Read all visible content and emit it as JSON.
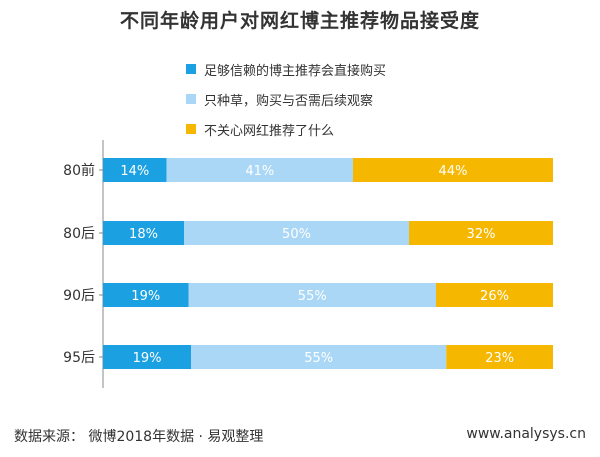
{
  "title": "不同年龄用户对网红博主推荐物品接受度",
  "footer": {
    "source": "数据来源： 微博2018年数据 · 易观整理",
    "url": "www.analysys.cn"
  },
  "chart_data": {
    "type": "bar",
    "orientation": "horizontal",
    "stacked": true,
    "title": "不同年龄用户对网红博主推荐物品接受度",
    "categories": [
      "80前",
      "80后",
      "90后",
      "95后"
    ],
    "series": [
      {
        "name": "足够信赖的博主推荐会直接购买",
        "color": "#1ba1e2",
        "values": [
          14,
          18,
          19,
          19
        ],
        "labels": [
          "14%",
          "18%",
          "19%",
          "19%"
        ]
      },
      {
        "name": "只种草，购买与否需后续观察",
        "color": "#a9d7f5",
        "values": [
          41,
          50,
          55,
          55
        ],
        "labels": [
          "41%",
          "50%",
          "55%",
          "55%"
        ]
      },
      {
        "name": "不关心网红推荐了什么",
        "color": "#f6b700",
        "values": [
          44,
          32,
          26,
          23
        ],
        "labels": [
          "44%",
          "32%",
          "26%",
          "23%"
        ]
      }
    ],
    "legend_position": "top",
    "grid": false
  }
}
